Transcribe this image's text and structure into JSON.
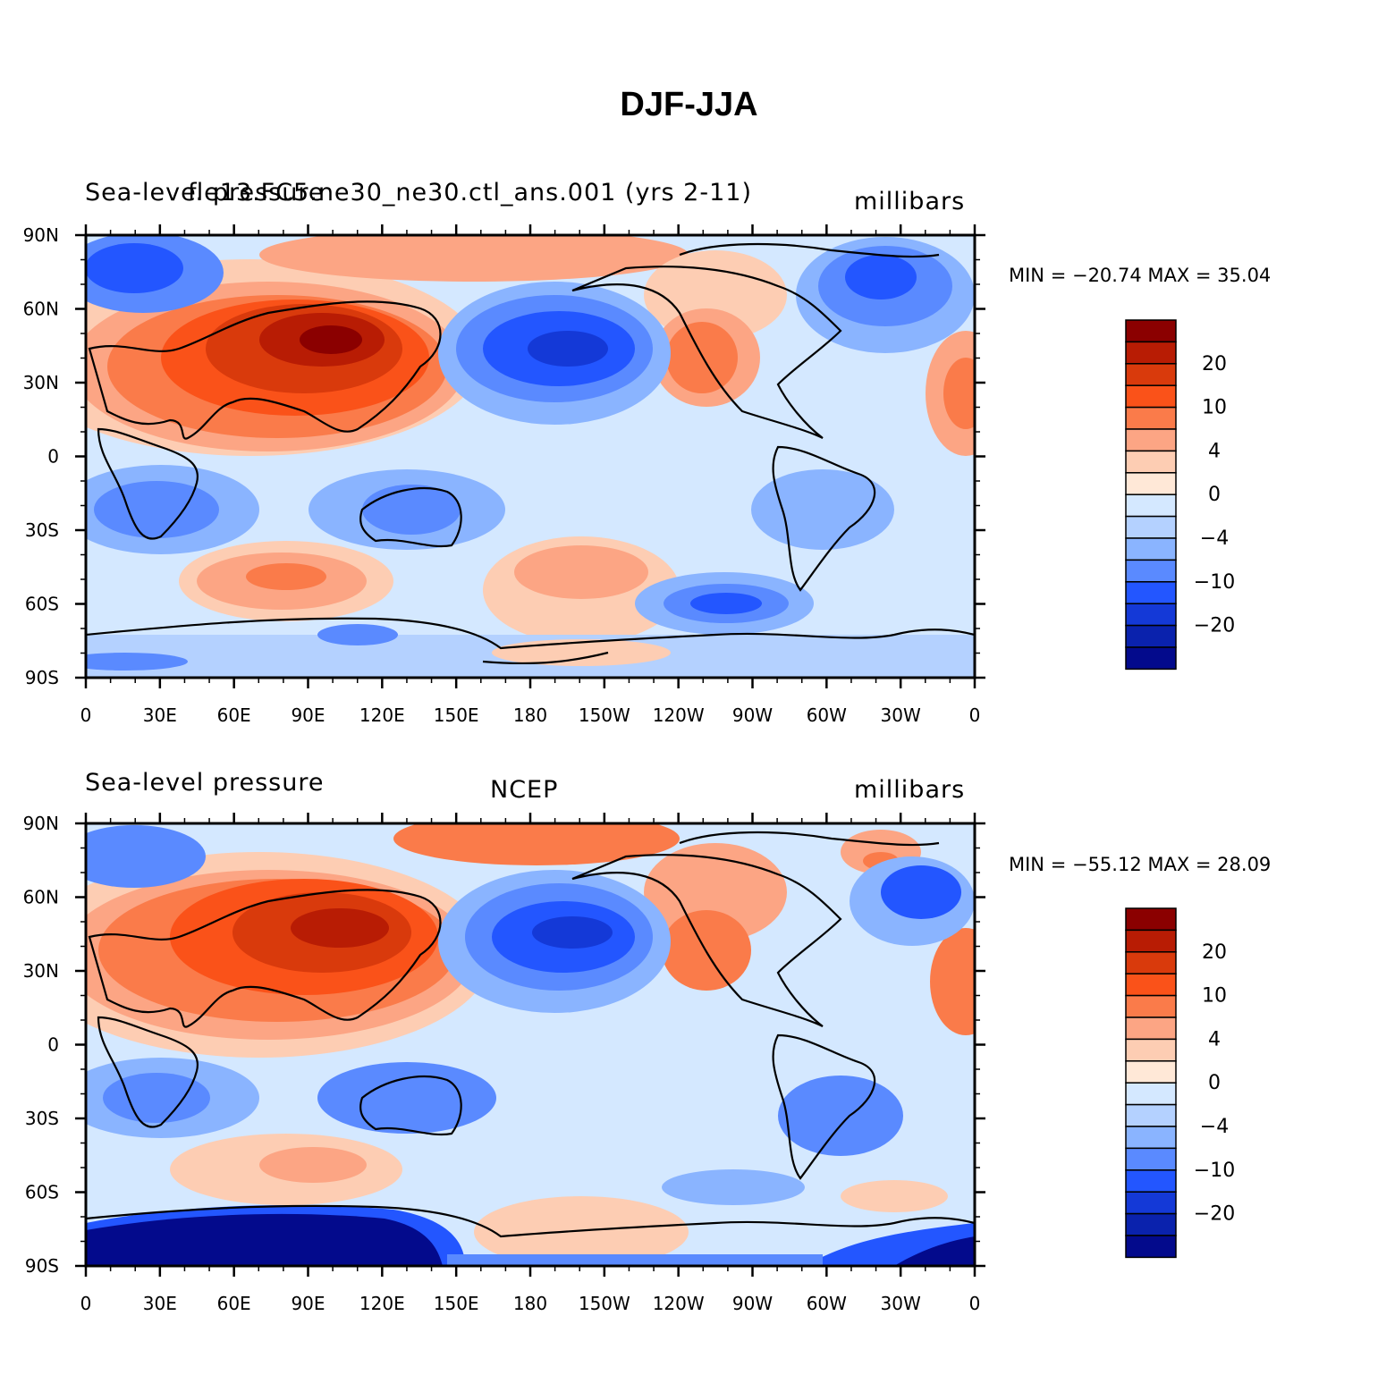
{
  "title": "DJF-JJA",
  "panels": [
    {
      "left_label": "Sea-level pressure",
      "center_label": "f.e13.FC5.ne30_ne30.ctl_ans.001 (yrs 2-11)",
      "right_label": "millibars",
      "stats": "MIN = −20.74  MAX =   35.04"
    },
    {
      "left_label": "Sea-level pressure",
      "center_label": "NCEP",
      "right_label": "millibars",
      "stats": "MIN = −55.12  MAX =   28.09"
    }
  ],
  "lat_ticks": [
    "90N",
    "60N",
    "30N",
    "0",
    "30S",
    "60S",
    "90S"
  ],
  "lon_ticks": [
    "0",
    "30E",
    "60E",
    "90E",
    "120E",
    "150E",
    "180",
    "150W",
    "120W",
    "90W",
    "60W",
    "30W",
    "0"
  ],
  "colorbar": {
    "colors": [
      "#8b0000",
      "#b81c04",
      "#d93a0c",
      "#fa5219",
      "#fa7b4a",
      "#fca584",
      "#fdcdb3",
      "#ffe8d7",
      "#d4e8ff",
      "#b4d1ff",
      "#8ab4ff",
      "#5a8aff",
      "#2356ff",
      "#1439d7",
      "#0a22ad",
      "#030a8c"
    ],
    "labels": [
      "20",
      "10",
      "4",
      "0",
      "−4",
      "−10",
      "−20"
    ]
  }
}
